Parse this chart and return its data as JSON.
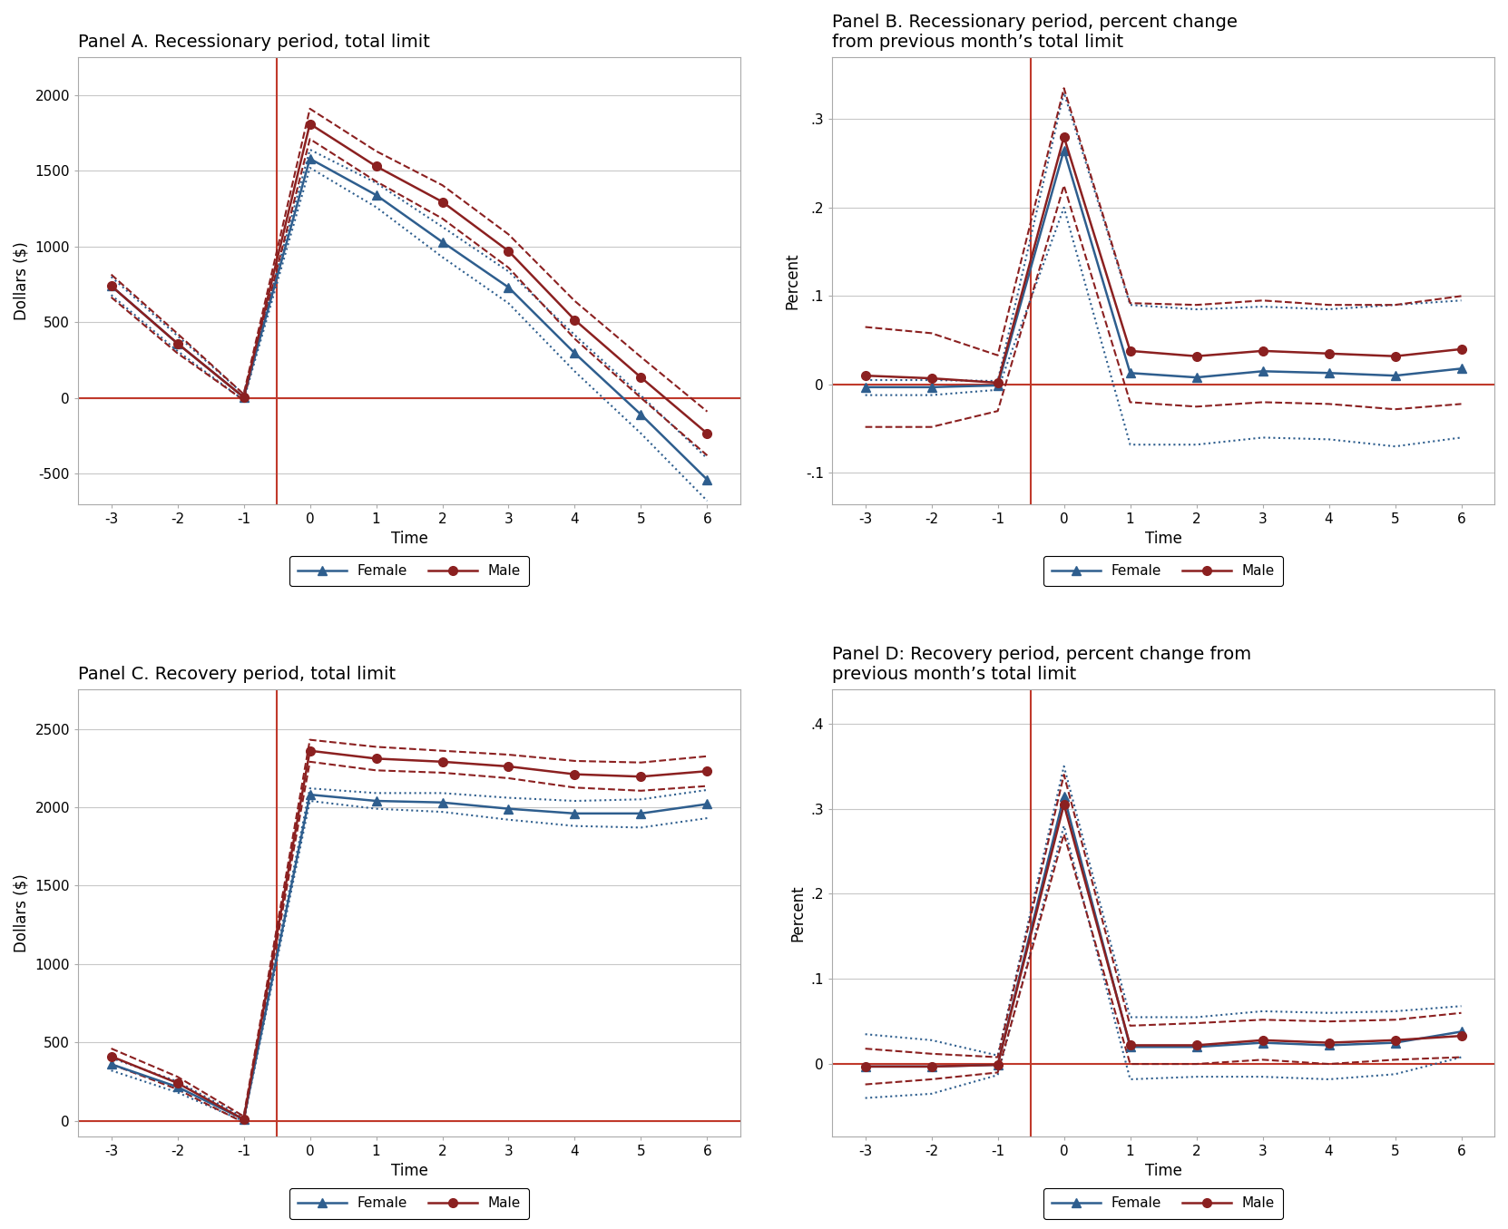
{
  "panel_A": {
    "title": "Panel A. Recessionary period, total limit",
    "xlabel": "Time",
    "ylabel": "Dollars ($)",
    "xlim": [
      -3.5,
      6.5
    ],
    "ylim": [
      -700,
      2250
    ],
    "yticks": [
      -500,
      0,
      500,
      1000,
      1500,
      2000
    ],
    "xticks": [
      -3,
      -2,
      -1,
      0,
      1,
      2,
      3,
      4,
      5,
      6
    ],
    "vline_x": -0.5,
    "hline_y": 0,
    "female_main_x": [
      -3,
      -2,
      -1,
      0,
      1,
      2,
      3,
      4,
      5,
      6
    ],
    "female_main_y": [
      740,
      360,
      5,
      1580,
      1340,
      1030,
      730,
      295,
      -110,
      -540
    ],
    "female_ci_upper_x": [
      -3,
      -2,
      -1,
      0,
      1,
      2,
      3,
      4,
      5,
      6
    ],
    "female_ci_upper_y": [
      800,
      410,
      25,
      1640,
      1420,
      1130,
      835,
      415,
      15,
      -400
    ],
    "female_ci_lower_x": [
      -3,
      -2,
      -1,
      0,
      1,
      2,
      3,
      4,
      5,
      6
    ],
    "female_ci_lower_y": [
      680,
      310,
      -15,
      1520,
      1260,
      930,
      625,
      175,
      -235,
      -680
    ],
    "male_main_x": [
      -3,
      -2,
      -1,
      0,
      1,
      2,
      3,
      4,
      5,
      6
    ],
    "male_main_y": [
      740,
      360,
      5,
      1810,
      1530,
      1295,
      970,
      515,
      135,
      -235
    ],
    "male_ci_upper_x": [
      -3,
      -2,
      -1,
      0,
      1,
      2,
      3,
      4,
      5,
      6
    ],
    "male_ci_upper_y": [
      815,
      425,
      25,
      1910,
      1630,
      1405,
      1080,
      640,
      270,
      -90
    ],
    "male_ci_lower_x": [
      -3,
      -2,
      -1,
      0,
      1,
      2,
      3,
      4,
      5,
      6
    ],
    "male_ci_lower_y": [
      665,
      295,
      -15,
      1710,
      1430,
      1185,
      860,
      390,
      0,
      -380
    ]
  },
  "panel_B": {
    "title": "Panel B. Recessionary period, percent change\nfrom previous month’s total limit",
    "xlabel": "Time",
    "ylabel": "Percent",
    "xlim": [
      -3.5,
      6.5
    ],
    "ylim": [
      -0.135,
      0.37
    ],
    "yticks": [
      -0.1,
      0.0,
      0.1,
      0.2,
      0.3
    ],
    "xticks": [
      -3,
      -2,
      -1,
      0,
      1,
      2,
      3,
      4,
      5,
      6
    ],
    "vline_x": -0.5,
    "hline_y": 0,
    "female_main_x": [
      -3,
      -2,
      -1,
      0,
      1,
      2,
      3,
      4,
      5,
      6
    ],
    "female_main_y": [
      -0.003,
      -0.003,
      -0.001,
      0.265,
      0.013,
      0.008,
      0.015,
      0.013,
      0.01,
      0.018
    ],
    "female_ci_upper_x": [
      -3,
      -2,
      -1,
      0,
      1,
      2,
      3,
      4,
      5,
      6
    ],
    "female_ci_upper_y": [
      0.005,
      0.005,
      0.004,
      0.33,
      0.09,
      0.085,
      0.088,
      0.085,
      0.09,
      0.095
    ],
    "female_ci_lower_x": [
      -3,
      -2,
      -1,
      0,
      1,
      2,
      3,
      4,
      5,
      6
    ],
    "female_ci_lower_y": [
      -0.012,
      -0.012,
      -0.006,
      0.2,
      -0.068,
      -0.068,
      -0.06,
      -0.062,
      -0.07,
      -0.06
    ],
    "male_main_x": [
      -3,
      -2,
      -1,
      0,
      1,
      2,
      3,
      4,
      5,
      6
    ],
    "male_main_y": [
      0.01,
      0.007,
      0.002,
      0.28,
      0.038,
      0.032,
      0.038,
      0.035,
      0.032,
      0.04
    ],
    "male_ci_upper_x": [
      -3,
      -2,
      -1,
      0,
      1,
      2,
      3,
      4,
      5,
      6
    ],
    "male_ci_upper_y": [
      0.065,
      0.058,
      0.033,
      0.335,
      0.092,
      0.09,
      0.095,
      0.09,
      0.09,
      0.1
    ],
    "male_ci_lower_x": [
      -3,
      -2,
      -1,
      0,
      1,
      2,
      3,
      4,
      5,
      6
    ],
    "male_ci_lower_y": [
      -0.048,
      -0.048,
      -0.03,
      0.225,
      -0.02,
      -0.025,
      -0.02,
      -0.022,
      -0.028,
      -0.022
    ]
  },
  "panel_C": {
    "title": "Panel C. Recovery period, total limit",
    "xlabel": "Time",
    "ylabel": "Dollars ($)",
    "xlim": [
      -3.5,
      6.5
    ],
    "ylim": [
      -100,
      2750
    ],
    "yticks": [
      0,
      500,
      1000,
      1500,
      2000,
      2500
    ],
    "xticks": [
      -3,
      -2,
      -1,
      0,
      1,
      2,
      3,
      4,
      5,
      6
    ],
    "vline_x": -0.5,
    "hline_y": 0,
    "female_main_x": [
      -3,
      -2,
      -1,
      0,
      1,
      2,
      3,
      4,
      5,
      6
    ],
    "female_main_y": [
      360,
      215,
      8,
      2080,
      2040,
      2030,
      1990,
      1960,
      1960,
      2020
    ],
    "female_ci_upper_x": [
      -3,
      -2,
      -1,
      0,
      1,
      2,
      3,
      4,
      5,
      6
    ],
    "female_ci_upper_y": [
      400,
      250,
      20,
      2120,
      2090,
      2090,
      2060,
      2040,
      2050,
      2110
    ],
    "female_ci_lower_x": [
      -3,
      -2,
      -1,
      0,
      1,
      2,
      3,
      4,
      5,
      6
    ],
    "female_ci_lower_y": [
      320,
      180,
      -4,
      2040,
      1990,
      1970,
      1920,
      1880,
      1870,
      1930
    ],
    "male_main_x": [
      -3,
      -2,
      -1,
      0,
      1,
      2,
      3,
      4,
      5,
      6
    ],
    "male_main_y": [
      410,
      240,
      8,
      2360,
      2310,
      2290,
      2260,
      2210,
      2195,
      2230
    ],
    "male_ci_upper_x": [
      -3,
      -2,
      -1,
      0,
      1,
      2,
      3,
      4,
      5,
      6
    ],
    "male_ci_upper_y": [
      460,
      280,
      28,
      2430,
      2385,
      2360,
      2335,
      2295,
      2285,
      2325
    ],
    "male_ci_lower_x": [
      -3,
      -2,
      -1,
      0,
      1,
      2,
      3,
      4,
      5,
      6
    ],
    "male_ci_lower_y": [
      360,
      200,
      -12,
      2290,
      2235,
      2220,
      2185,
      2125,
      2105,
      2135
    ]
  },
  "panel_D": {
    "title": "Panel D: Recovery period, percent change from\nprevious month’s total limit",
    "xlabel": "Time",
    "ylabel": "Percent",
    "xlim": [
      -3.5,
      6.5
    ],
    "ylim": [
      -0.085,
      0.44
    ],
    "yticks": [
      0.0,
      0.1,
      0.2,
      0.3,
      0.4
    ],
    "xticks": [
      -3,
      -2,
      -1,
      0,
      1,
      2,
      3,
      4,
      5,
      6
    ],
    "vline_x": -0.5,
    "hline_y": 0,
    "female_main_x": [
      -3,
      -2,
      -1,
      0,
      1,
      2,
      3,
      4,
      5,
      6
    ],
    "female_main_y": [
      -0.003,
      -0.003,
      -0.001,
      0.315,
      0.02,
      0.02,
      0.025,
      0.022,
      0.025,
      0.038
    ],
    "female_ci_upper_x": [
      -3,
      -2,
      -1,
      0,
      1,
      2,
      3,
      4,
      5,
      6
    ],
    "female_ci_upper_y": [
      0.035,
      0.028,
      0.01,
      0.35,
      0.055,
      0.055,
      0.062,
      0.06,
      0.062,
      0.068
    ],
    "female_ci_lower_x": [
      -3,
      -2,
      -1,
      0,
      1,
      2,
      3,
      4,
      5,
      6
    ],
    "female_ci_lower_y": [
      -0.04,
      -0.035,
      -0.013,
      0.28,
      -0.018,
      -0.015,
      -0.015,
      -0.018,
      -0.012,
      0.008
    ],
    "male_main_x": [
      -3,
      -2,
      -1,
      0,
      1,
      2,
      3,
      4,
      5,
      6
    ],
    "male_main_y": [
      -0.003,
      -0.003,
      -0.001,
      0.305,
      0.022,
      0.022,
      0.028,
      0.025,
      0.028,
      0.033
    ],
    "male_ci_upper_x": [
      -3,
      -2,
      -1,
      0,
      1,
      2,
      3,
      4,
      5,
      6
    ],
    "male_ci_upper_y": [
      0.018,
      0.012,
      0.008,
      0.34,
      0.045,
      0.048,
      0.052,
      0.05,
      0.052,
      0.06
    ],
    "male_ci_lower_x": [
      -3,
      -2,
      -1,
      0,
      1,
      2,
      3,
      4,
      5,
      6
    ],
    "male_ci_lower_y": [
      -0.024,
      -0.018,
      -0.01,
      0.27,
      0.0,
      0.0,
      0.005,
      0.0,
      0.005,
      0.008
    ]
  },
  "female_color": "#2E5E8E",
  "male_color": "#8B2020",
  "hline_color": "#C0392B",
  "vline_color": "#C0392B",
  "legend_female": "Female",
  "legend_male": "Male",
  "bg_color": "#FFFFFF",
  "grid_color": "#C8C8C8"
}
